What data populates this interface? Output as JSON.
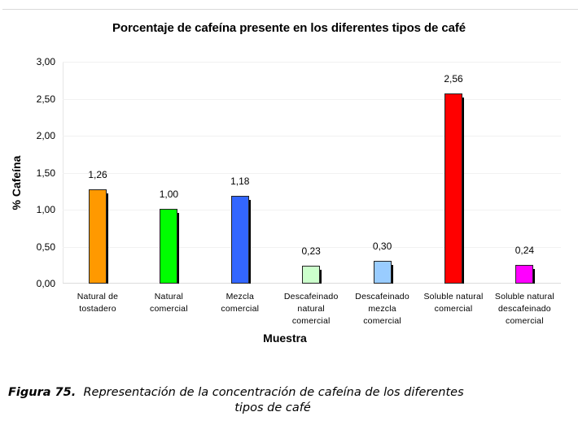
{
  "chart_data": {
    "type": "bar",
    "title": "Porcentaje de cafeína presente en los diferentes tipos de café",
    "xlabel": "Muestra",
    "ylabel": "% Cafeína",
    "ylim": [
      0,
      3
    ],
    "yticks": [
      "0,00",
      "0,50",
      "1,00",
      "1,50",
      "2,00",
      "2,50",
      "3,00"
    ],
    "grid": true,
    "legend": null,
    "categories": [
      "Natural de tostadero",
      "Natural comercial",
      "Mezcla comercial",
      "Descafeinado natural comercial",
      "Descafeinado mezcla comercial",
      "Soluble natural comercial",
      "Soluble natural descafeinado comercial"
    ],
    "values": [
      1.26,
      1.0,
      1.18,
      0.23,
      0.3,
      2.56,
      0.24
    ],
    "value_labels": [
      "1,26",
      "1,00",
      "1,18",
      "0,23",
      "0,30",
      "2,56",
      "0,24"
    ],
    "colors": [
      "#ff9900",
      "#00ff00",
      "#3366ff",
      "#ccffcc",
      "#99ccff",
      "#ff0000",
      "#ff00ff"
    ]
  },
  "chart": {
    "title": "Porcentaje de cafeína presente en los diferentes tipos de café",
    "ylabel": "% Cafeína",
    "xlabel": "Muestra",
    "yticks": [
      "3,00",
      "2,50",
      "2,00",
      "1,50",
      "1,00",
      "0,50",
      "0,00"
    ],
    "categories": [
      {
        "lines": [
          "Natural de",
          "tostadero"
        ]
      },
      {
        "lines": [
          "Natural",
          "comercial"
        ]
      },
      {
        "lines": [
          "Mezcla",
          "comercial"
        ]
      },
      {
        "lines": [
          "Descafeinado",
          "natural",
          "comercial"
        ]
      },
      {
        "lines": [
          "Descafeinado",
          "mezcla",
          "comercial"
        ]
      },
      {
        "lines": [
          "Soluble natural",
          "comercial"
        ]
      },
      {
        "lines": [
          "Soluble natural",
          "descafeinado",
          "comercial"
        ]
      }
    ],
    "bars": [
      {
        "value": 1.26,
        "label": "1,26",
        "color": "#ff9900"
      },
      {
        "value": 1.0,
        "label": "1,00",
        "color": "#00ff00"
      },
      {
        "value": 1.18,
        "label": "1,18",
        "color": "#3366ff"
      },
      {
        "value": 0.23,
        "label": "0,23",
        "color": "#ccffcc"
      },
      {
        "value": 0.3,
        "label": "0,30",
        "color": "#99ccff"
      },
      {
        "value": 2.56,
        "label": "2,56",
        "color": "#ff0000"
      },
      {
        "value": 0.24,
        "label": "0,24",
        "color": "#ff00ff"
      }
    ]
  },
  "caption": {
    "figure_number": "Figura 75.",
    "text_line1": "Representación de la concentración de cafeína de los diferentes",
    "text_line2": "tipos de café"
  }
}
